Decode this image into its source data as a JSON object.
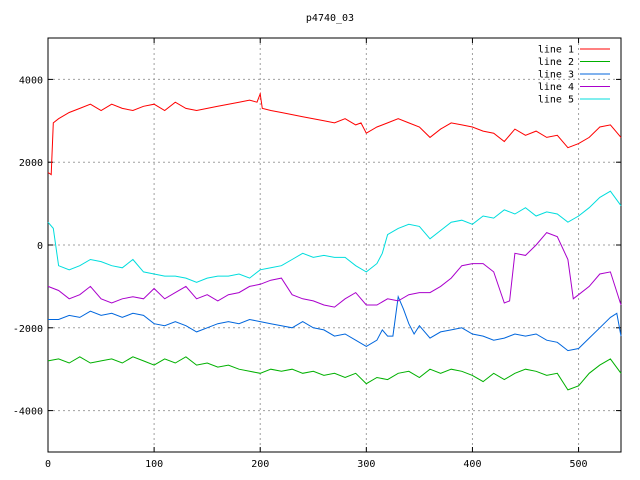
{
  "chart_data": {
    "type": "line",
    "title": "p4740_03",
    "xlabel": "",
    "ylabel": "",
    "xlim": [
      0,
      540
    ],
    "ylim": [
      -5000,
      5000
    ],
    "grid": true,
    "legend_position": "top-right",
    "x_ticks": [
      0,
      100,
      200,
      300,
      400,
      500
    ],
    "y_ticks": [
      -4000,
      -2000,
      0,
      2000,
      4000
    ],
    "series": [
      {
        "name": "line 1",
        "color": "#ff0000",
        "points": [
          [
            0,
            1750
          ],
          [
            3,
            1700
          ],
          [
            5,
            2950
          ],
          [
            10,
            3050
          ],
          [
            20,
            3200
          ],
          [
            30,
            3300
          ],
          [
            40,
            3400
          ],
          [
            50,
            3250
          ],
          [
            60,
            3400
          ],
          [
            70,
            3300
          ],
          [
            80,
            3250
          ],
          [
            90,
            3350
          ],
          [
            100,
            3400
          ],
          [
            110,
            3250
          ],
          [
            120,
            3450
          ],
          [
            130,
            3300
          ],
          [
            140,
            3250
          ],
          [
            150,
            3300
          ],
          [
            160,
            3350
          ],
          [
            170,
            3400
          ],
          [
            180,
            3450
          ],
          [
            190,
            3500
          ],
          [
            197,
            3450
          ],
          [
            200,
            3650
          ],
          [
            202,
            3300
          ],
          [
            210,
            3250
          ],
          [
            220,
            3200
          ],
          [
            230,
            3150
          ],
          [
            240,
            3100
          ],
          [
            250,
            3050
          ],
          [
            260,
            3000
          ],
          [
            270,
            2950
          ],
          [
            280,
            3050
          ],
          [
            290,
            2900
          ],
          [
            295,
            2950
          ],
          [
            300,
            2700
          ],
          [
            310,
            2850
          ],
          [
            320,
            2950
          ],
          [
            330,
            3050
          ],
          [
            340,
            2950
          ],
          [
            350,
            2850
          ],
          [
            360,
            2600
          ],
          [
            370,
            2800
          ],
          [
            380,
            2950
          ],
          [
            390,
            2900
          ],
          [
            400,
            2850
          ],
          [
            410,
            2750
          ],
          [
            420,
            2700
          ],
          [
            430,
            2500
          ],
          [
            440,
            2800
          ],
          [
            450,
            2650
          ],
          [
            460,
            2750
          ],
          [
            470,
            2600
          ],
          [
            480,
            2650
          ],
          [
            490,
            2350
          ],
          [
            500,
            2450
          ],
          [
            510,
            2600
          ],
          [
            520,
            2850
          ],
          [
            530,
            2900
          ],
          [
            540,
            2600
          ]
        ]
      },
      {
        "name": "line 2",
        "color": "#00b000",
        "points": [
          [
            0,
            -2800
          ],
          [
            10,
            -2750
          ],
          [
            20,
            -2850
          ],
          [
            30,
            -2700
          ],
          [
            40,
            -2850
          ],
          [
            50,
            -2800
          ],
          [
            60,
            -2750
          ],
          [
            70,
            -2850
          ],
          [
            80,
            -2700
          ],
          [
            90,
            -2800
          ],
          [
            100,
            -2900
          ],
          [
            110,
            -2750
          ],
          [
            120,
            -2850
          ],
          [
            130,
            -2700
          ],
          [
            140,
            -2900
          ],
          [
            150,
            -2850
          ],
          [
            160,
            -2950
          ],
          [
            170,
            -2900
          ],
          [
            180,
            -3000
          ],
          [
            190,
            -3050
          ],
          [
            200,
            -3100
          ],
          [
            210,
            -3000
          ],
          [
            220,
            -3050
          ],
          [
            230,
            -3000
          ],
          [
            240,
            -3100
          ],
          [
            250,
            -3050
          ],
          [
            260,
            -3150
          ],
          [
            270,
            -3100
          ],
          [
            280,
            -3200
          ],
          [
            290,
            -3100
          ],
          [
            300,
            -3350
          ],
          [
            310,
            -3200
          ],
          [
            320,
            -3250
          ],
          [
            330,
            -3100
          ],
          [
            340,
            -3050
          ],
          [
            350,
            -3200
          ],
          [
            360,
            -3000
          ],
          [
            370,
            -3100
          ],
          [
            380,
            -3000
          ],
          [
            390,
            -3050
          ],
          [
            400,
            -3150
          ],
          [
            410,
            -3300
          ],
          [
            420,
            -3100
          ],
          [
            430,
            -3250
          ],
          [
            440,
            -3100
          ],
          [
            450,
            -3000
          ],
          [
            460,
            -3050
          ],
          [
            470,
            -3150
          ],
          [
            480,
            -3100
          ],
          [
            490,
            -3500
          ],
          [
            500,
            -3400
          ],
          [
            510,
            -3100
          ],
          [
            520,
            -2900
          ],
          [
            530,
            -2750
          ],
          [
            540,
            -3100
          ]
        ]
      },
      {
        "name": "line 3",
        "color": "#0066dd",
        "points": [
          [
            0,
            -1800
          ],
          [
            10,
            -1800
          ],
          [
            20,
            -1700
          ],
          [
            30,
            -1750
          ],
          [
            40,
            -1600
          ],
          [
            50,
            -1700
          ],
          [
            60,
            -1650
          ],
          [
            70,
            -1750
          ],
          [
            80,
            -1650
          ],
          [
            90,
            -1700
          ],
          [
            100,
            -1900
          ],
          [
            110,
            -1950
          ],
          [
            120,
            -1850
          ],
          [
            130,
            -1950
          ],
          [
            140,
            -2100
          ],
          [
            150,
            -2000
          ],
          [
            160,
            -1900
          ],
          [
            170,
            -1850
          ],
          [
            180,
            -1900
          ],
          [
            190,
            -1800
          ],
          [
            200,
            -1850
          ],
          [
            210,
            -1900
          ],
          [
            220,
            -1950
          ],
          [
            230,
            -2000
          ],
          [
            240,
            -1850
          ],
          [
            250,
            -2000
          ],
          [
            260,
            -2050
          ],
          [
            270,
            -2200
          ],
          [
            280,
            -2150
          ],
          [
            290,
            -2300
          ],
          [
            300,
            -2450
          ],
          [
            310,
            -2300
          ],
          [
            315,
            -2050
          ],
          [
            320,
            -2200
          ],
          [
            325,
            -2200
          ],
          [
            330,
            -1250
          ],
          [
            335,
            -1550
          ],
          [
            340,
            -1900
          ],
          [
            345,
            -2150
          ],
          [
            350,
            -1950
          ],
          [
            360,
            -2250
          ],
          [
            370,
            -2100
          ],
          [
            380,
            -2050
          ],
          [
            390,
            -2000
          ],
          [
            400,
            -2150
          ],
          [
            410,
            -2200
          ],
          [
            420,
            -2300
          ],
          [
            430,
            -2250
          ],
          [
            440,
            -2150
          ],
          [
            450,
            -2200
          ],
          [
            460,
            -2150
          ],
          [
            470,
            -2300
          ],
          [
            480,
            -2350
          ],
          [
            490,
            -2550
          ],
          [
            500,
            -2500
          ],
          [
            510,
            -2250
          ],
          [
            520,
            -2000
          ],
          [
            530,
            -1750
          ],
          [
            536,
            -1650
          ],
          [
            540,
            -2200
          ]
        ]
      },
      {
        "name": "line 4",
        "color": "#aa00cc",
        "points": [
          [
            0,
            -1000
          ],
          [
            10,
            -1100
          ],
          [
            20,
            -1300
          ],
          [
            30,
            -1200
          ],
          [
            40,
            -1000
          ],
          [
            50,
            -1300
          ],
          [
            60,
            -1400
          ],
          [
            70,
            -1300
          ],
          [
            80,
            -1250
          ],
          [
            90,
            -1300
          ],
          [
            100,
            -1050
          ],
          [
            110,
            -1300
          ],
          [
            120,
            -1150
          ],
          [
            130,
            -1000
          ],
          [
            140,
            -1300
          ],
          [
            150,
            -1200
          ],
          [
            160,
            -1350
          ],
          [
            170,
            -1200
          ],
          [
            180,
            -1150
          ],
          [
            190,
            -1000
          ],
          [
            200,
            -950
          ],
          [
            210,
            -850
          ],
          [
            220,
            -800
          ],
          [
            230,
            -1200
          ],
          [
            240,
            -1300
          ],
          [
            250,
            -1350
          ],
          [
            260,
            -1450
          ],
          [
            270,
            -1500
          ],
          [
            280,
            -1300
          ],
          [
            290,
            -1150
          ],
          [
            300,
            -1450
          ],
          [
            310,
            -1450
          ],
          [
            320,
            -1300
          ],
          [
            330,
            -1350
          ],
          [
            340,
            -1200
          ],
          [
            350,
            -1150
          ],
          [
            360,
            -1150
          ],
          [
            370,
            -1000
          ],
          [
            380,
            -800
          ],
          [
            390,
            -500
          ],
          [
            400,
            -450
          ],
          [
            410,
            -450
          ],
          [
            420,
            -650
          ],
          [
            430,
            -1400
          ],
          [
            435,
            -1350
          ],
          [
            440,
            -200
          ],
          [
            450,
            -250
          ],
          [
            460,
            0
          ],
          [
            470,
            300
          ],
          [
            480,
            200
          ],
          [
            490,
            -350
          ],
          [
            495,
            -1300
          ],
          [
            500,
            -1200
          ],
          [
            510,
            -1000
          ],
          [
            520,
            -700
          ],
          [
            530,
            -650
          ],
          [
            540,
            -1450
          ]
        ]
      },
      {
        "name": "line 5",
        "color": "#00dddd",
        "points": [
          [
            0,
            550
          ],
          [
            5,
            400
          ],
          [
            10,
            -500
          ],
          [
            20,
            -600
          ],
          [
            30,
            -500
          ],
          [
            40,
            -350
          ],
          [
            50,
            -400
          ],
          [
            60,
            -500
          ],
          [
            70,
            -550
          ],
          [
            80,
            -350
          ],
          [
            90,
            -650
          ],
          [
            100,
            -700
          ],
          [
            110,
            -750
          ],
          [
            120,
            -750
          ],
          [
            130,
            -800
          ],
          [
            140,
            -900
          ],
          [
            150,
            -800
          ],
          [
            160,
            -750
          ],
          [
            170,
            -750
          ],
          [
            180,
            -700
          ],
          [
            190,
            -800
          ],
          [
            200,
            -600
          ],
          [
            210,
            -550
          ],
          [
            220,
            -500
          ],
          [
            230,
            -350
          ],
          [
            240,
            -200
          ],
          [
            250,
            -300
          ],
          [
            260,
            -250
          ],
          [
            270,
            -300
          ],
          [
            280,
            -300
          ],
          [
            290,
            -500
          ],
          [
            300,
            -650
          ],
          [
            310,
            -450
          ],
          [
            315,
            -200
          ],
          [
            320,
            250
          ],
          [
            330,
            400
          ],
          [
            340,
            500
          ],
          [
            350,
            450
          ],
          [
            360,
            150
          ],
          [
            370,
            350
          ],
          [
            380,
            550
          ],
          [
            390,
            600
          ],
          [
            400,
            500
          ],
          [
            410,
            700
          ],
          [
            420,
            650
          ],
          [
            430,
            850
          ],
          [
            440,
            750
          ],
          [
            450,
            900
          ],
          [
            460,
            700
          ],
          [
            470,
            800
          ],
          [
            480,
            750
          ],
          [
            490,
            550
          ],
          [
            500,
            700
          ],
          [
            510,
            900
          ],
          [
            520,
            1150
          ],
          [
            530,
            1300
          ],
          [
            540,
            950
          ]
        ]
      }
    ]
  }
}
